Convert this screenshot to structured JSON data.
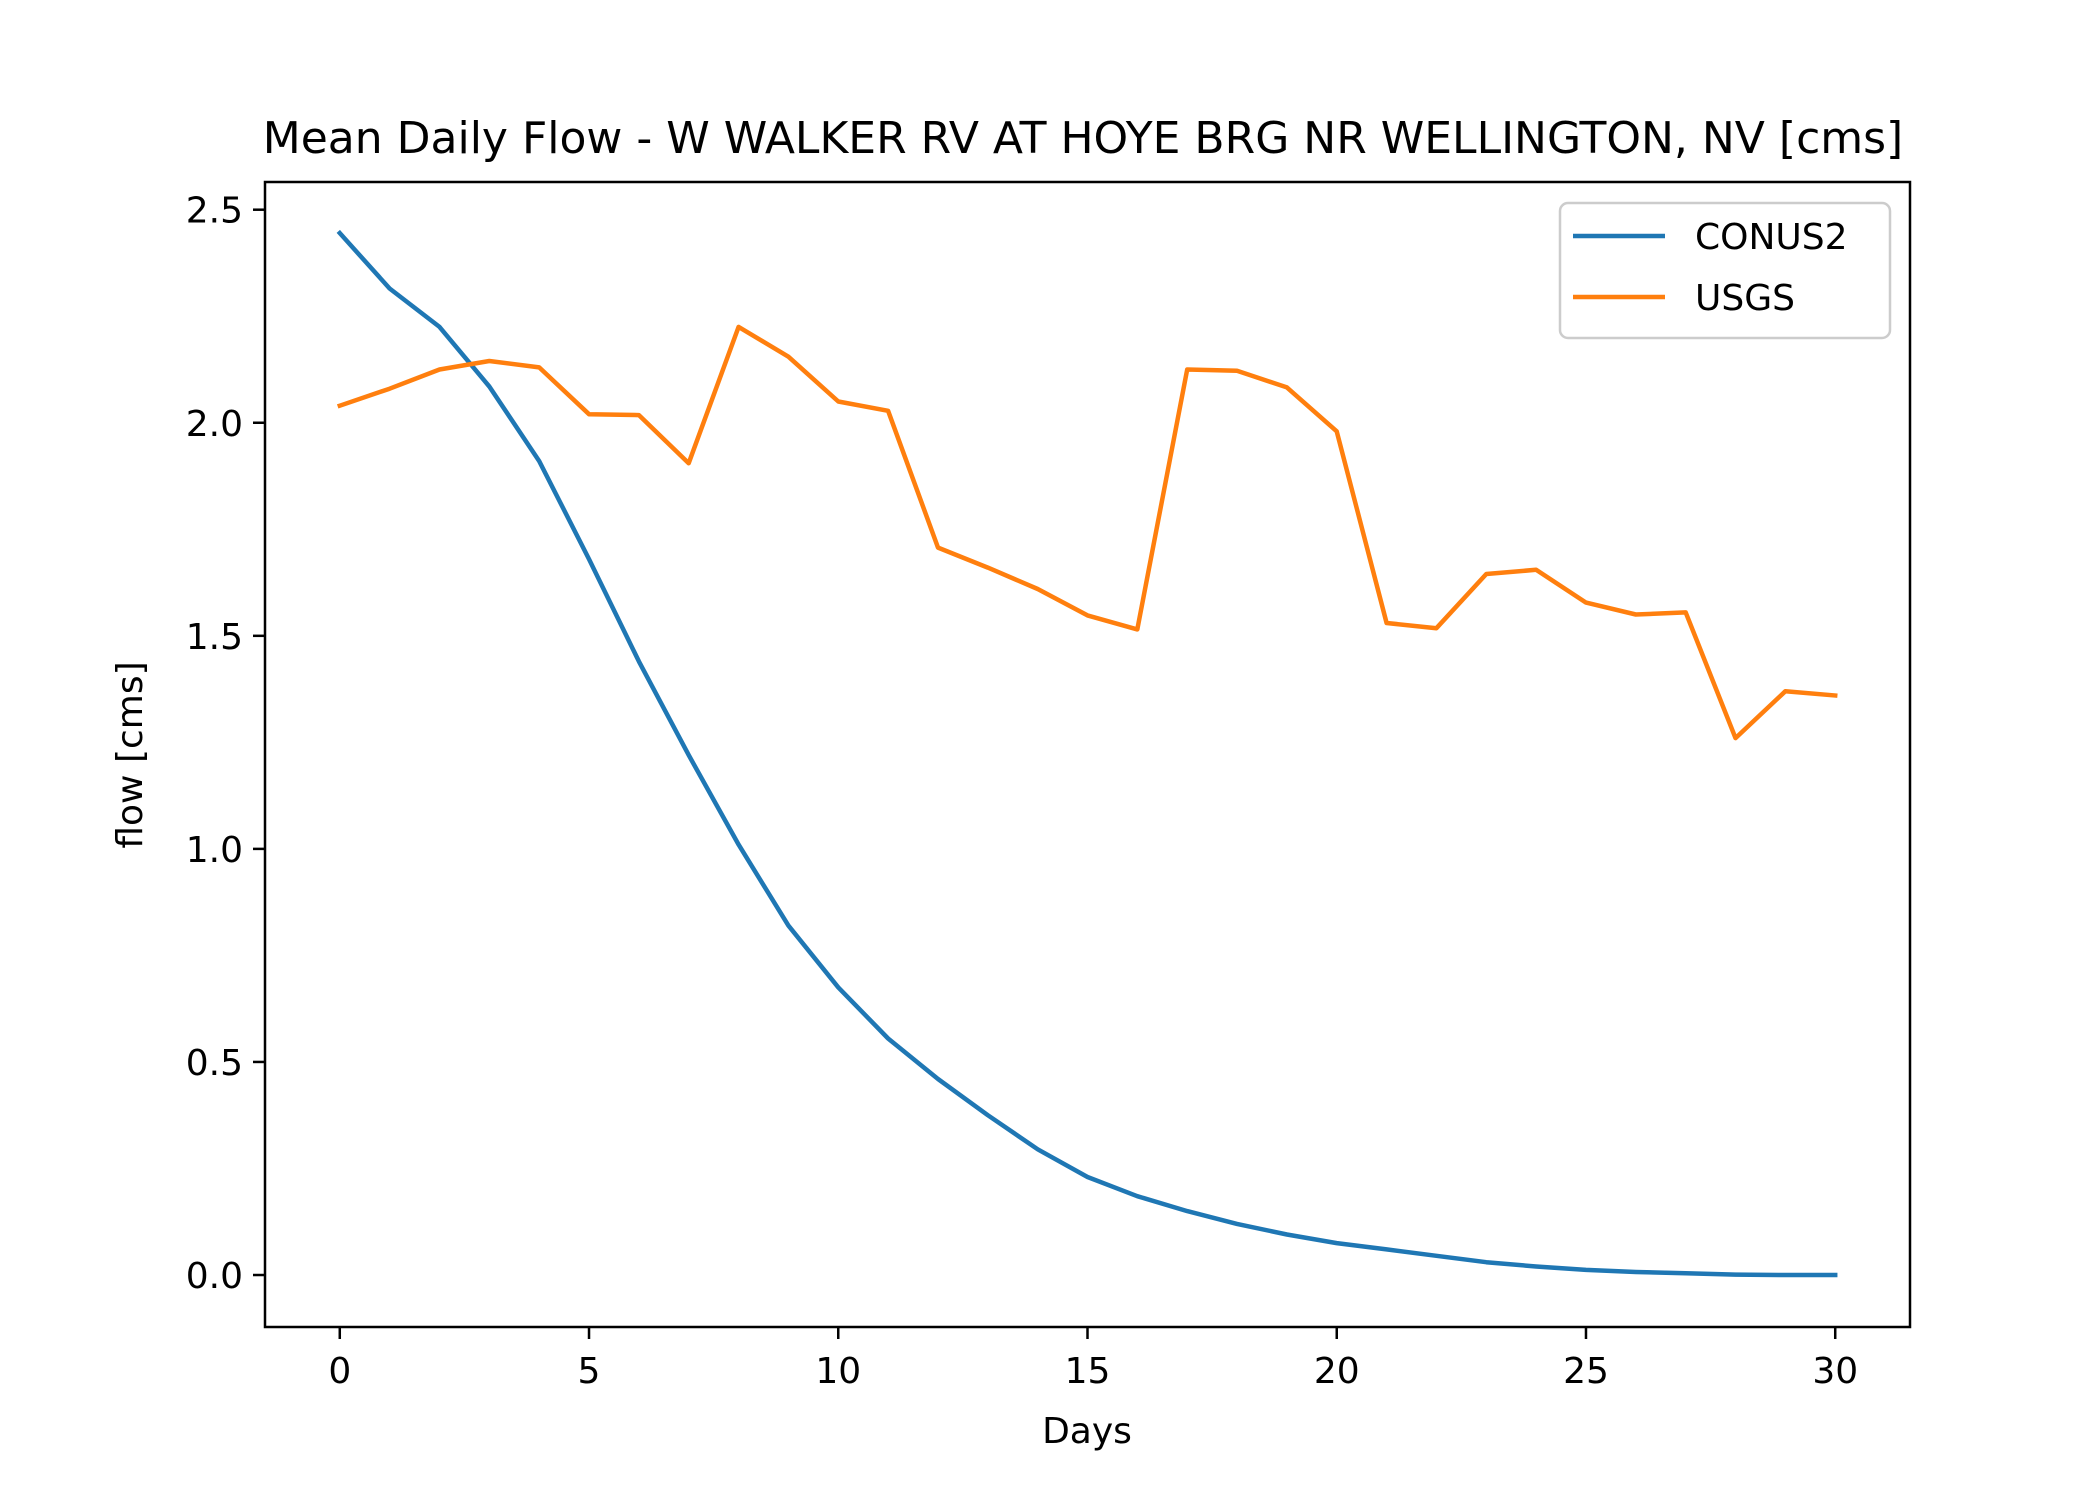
{
  "chart_data": {
    "type": "line",
    "title": "Mean Daily Flow - W WALKER RV AT HOYE BRG NR WELLINGTON, NV [cms]",
    "xlabel": "Days",
    "ylabel": "flow [cms]",
    "xlim": [
      -1.5,
      31.5
    ],
    "ylim": [
      -0.122,
      2.565
    ],
    "xticks": [
      0,
      5,
      10,
      15,
      20,
      25,
      30
    ],
    "xtick_labels": [
      "0",
      "5",
      "10",
      "15",
      "20",
      "25",
      "30"
    ],
    "yticks": [
      0.0,
      0.5,
      1.0,
      1.5,
      2.0,
      2.5
    ],
    "ytick_labels": [
      "0.0",
      "0.5",
      "1.0",
      "1.5",
      "2.0",
      "2.5"
    ],
    "grid": false,
    "legend_position": "upper right",
    "x": [
      0,
      1,
      2,
      3,
      4,
      5,
      6,
      7,
      8,
      9,
      10,
      11,
      12,
      13,
      14,
      15,
      16,
      17,
      18,
      19,
      20,
      21,
      22,
      23,
      24,
      25,
      26,
      27,
      28,
      29,
      30
    ],
    "series": [
      {
        "name": "CONUS2",
        "color": "#1f77b4",
        "values": [
          2.445,
          2.315,
          2.225,
          2.085,
          1.91,
          1.68,
          1.44,
          1.22,
          1.01,
          0.82,
          0.675,
          0.555,
          0.46,
          0.375,
          0.295,
          0.23,
          0.185,
          0.15,
          0.12,
          0.095,
          0.075,
          0.06,
          0.045,
          0.03,
          0.02,
          0.012,
          0.007,
          0.004,
          0.001,
          0.0,
          0.0
        ]
      },
      {
        "name": "USGS",
        "color": "#ff7f0e",
        "values": [
          2.04,
          2.08,
          2.125,
          2.145,
          2.13,
          2.02,
          2.018,
          1.905,
          2.225,
          2.155,
          2.05,
          2.028,
          1.707,
          1.66,
          1.61,
          1.548,
          1.515,
          2.125,
          2.122,
          2.083,
          1.98,
          1.53,
          1.518,
          1.645,
          1.655,
          1.578,
          1.55,
          1.555,
          1.26,
          1.37,
          1.36
        ]
      }
    ]
  }
}
